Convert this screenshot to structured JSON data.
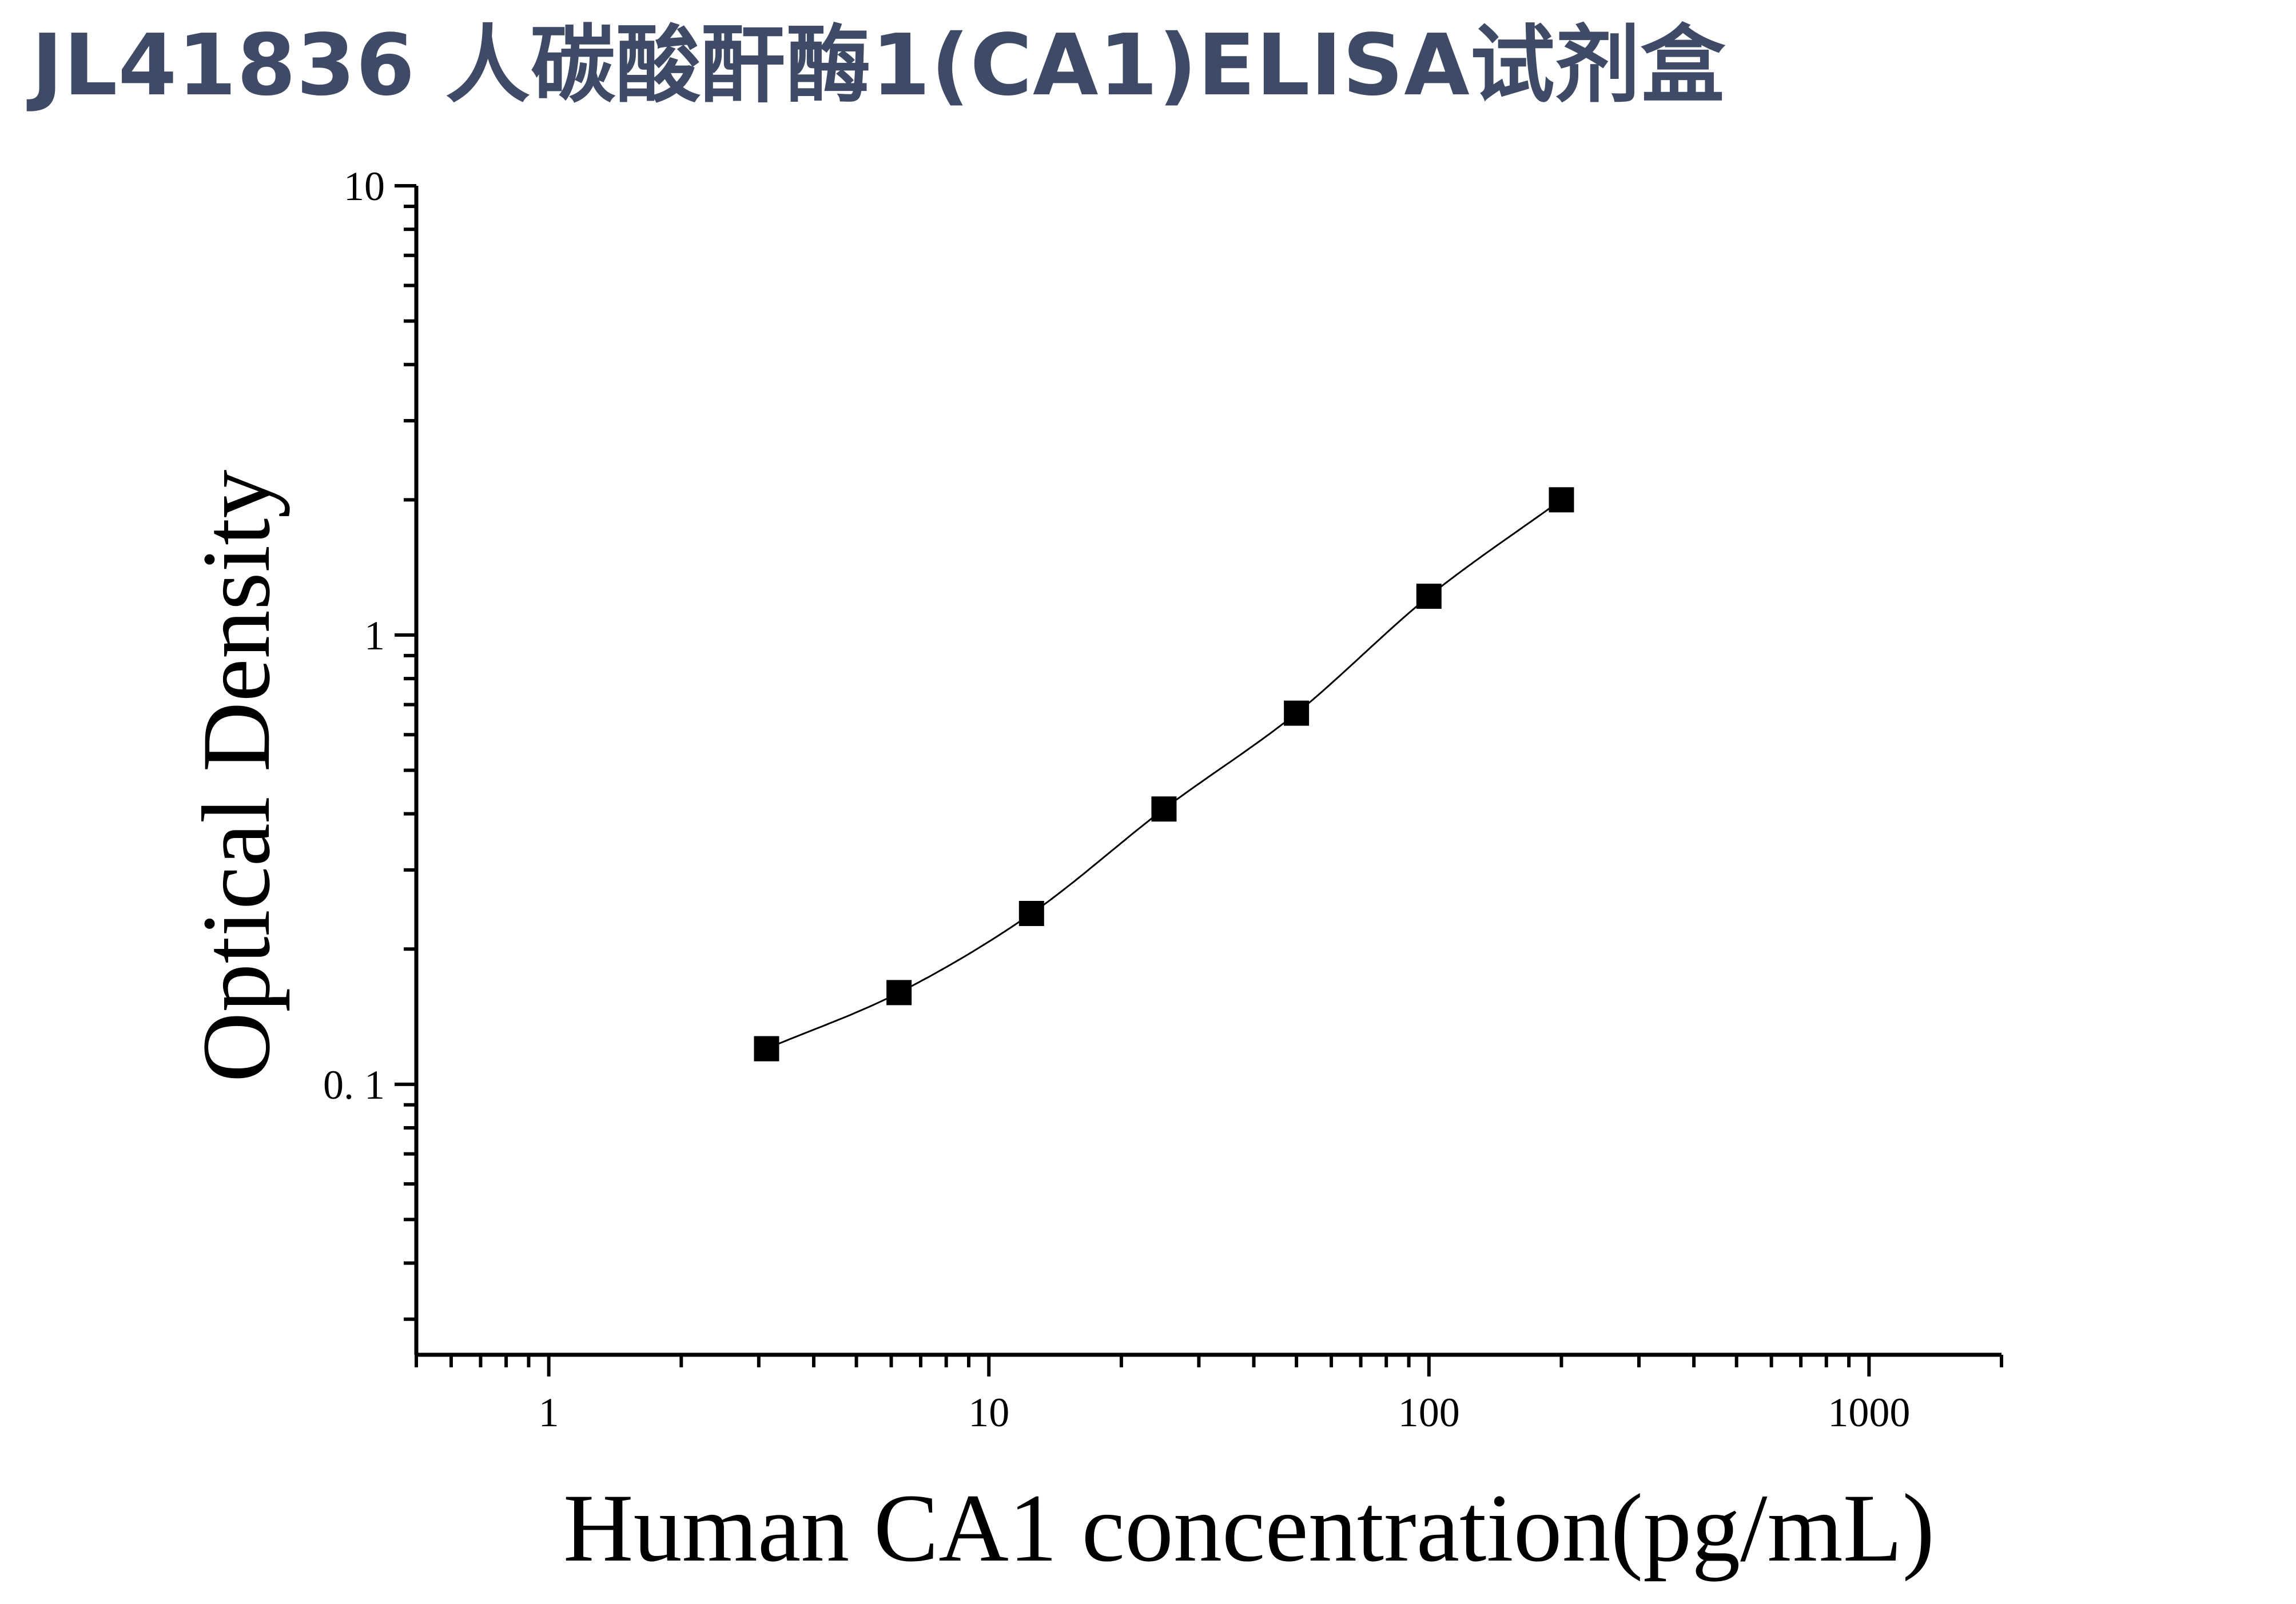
{
  "title": "JL41836 人碳酸酐酶1(CA1)ELISA试剂盒",
  "chart_data": {
    "type": "scatter",
    "title": "JL41836 人碳酸酐酶1(CA1)ELISA试剂盒",
    "xlabel": "Human CA1 concentration(pg/mL)",
    "ylabel": "Optical Density",
    "x_scale": "log",
    "y_scale": "log",
    "xlim": [
      0.5,
      2000
    ],
    "ylim": [
      0.025,
      10
    ],
    "x_ticks": [
      1,
      10,
      100,
      1000
    ],
    "x_tick_labels": [
      "1",
      "10",
      "100",
      "1000"
    ],
    "y_ticks": [
      0.1,
      1,
      10
    ],
    "y_tick_labels": [
      "0. 1",
      "1",
      "10"
    ],
    "grid": false,
    "legend": "none",
    "marker": "square",
    "fit_curve": true,
    "colors": {
      "title": "#3f4b66",
      "marker": "#000000",
      "line": "#000000",
      "axis": "#000000"
    },
    "series": [
      {
        "x": [
          3.125,
          6.25,
          12.5,
          25,
          50,
          100,
          200
        ],
        "y": [
          0.12,
          0.16,
          0.24,
          0.41,
          0.67,
          1.22,
          2.0
        ]
      }
    ]
  }
}
